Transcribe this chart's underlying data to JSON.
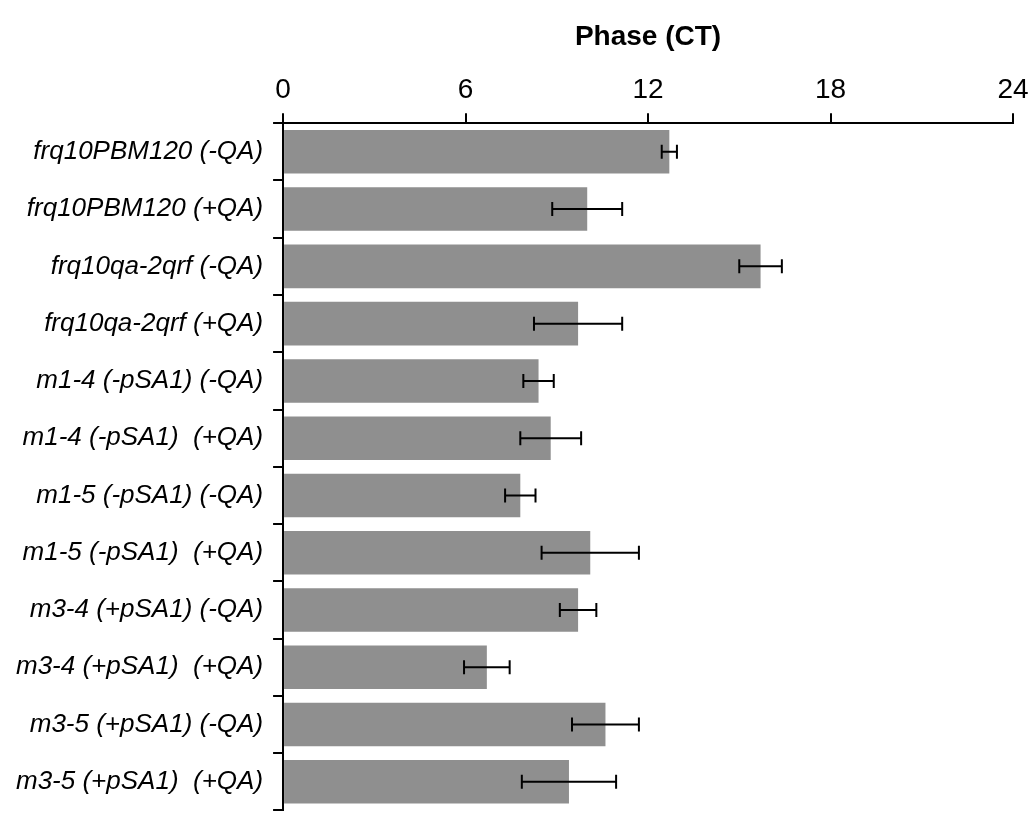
{
  "chart_data": {
    "type": "bar",
    "orientation": "horizontal",
    "xlabel": "Phase (CT)",
    "categories": [
      "frq10PBM120 (-QA)",
      "frq10PBM120 (+QA)",
      "frq10qa-2qrf (-QA)",
      "frq10qa-2qrf (+QA)",
      "m1-4 (-pSA1) (-QA)",
      "m1-4 (-pSA1)  (+QA)",
      "m1-5 (-pSA1) (-QA)",
      "m1-5 (-pSA1)  (+QA)",
      "m3-4 (+pSA1) (-QA)",
      "m3-4 (+pSA1)  (+QA)",
      "m3-5 (+pSA1) (-QA)",
      "m3-5 (+pSA1)  (+QA)"
    ],
    "values": [
      12.7,
      10.0,
      15.7,
      9.7,
      8.4,
      8.8,
      7.8,
      10.1,
      9.7,
      6.7,
      10.6,
      9.4
    ],
    "errors": [
      0.25,
      1.15,
      0.7,
      1.45,
      0.5,
      1.0,
      0.5,
      1.6,
      0.6,
      0.75,
      1.1,
      1.55
    ],
    "color": "#8f8f8f",
    "xlim": [
      0,
      24
    ],
    "xticks": [
      0,
      6,
      12,
      18,
      24
    ],
    "grid": false,
    "legend": false
  }
}
